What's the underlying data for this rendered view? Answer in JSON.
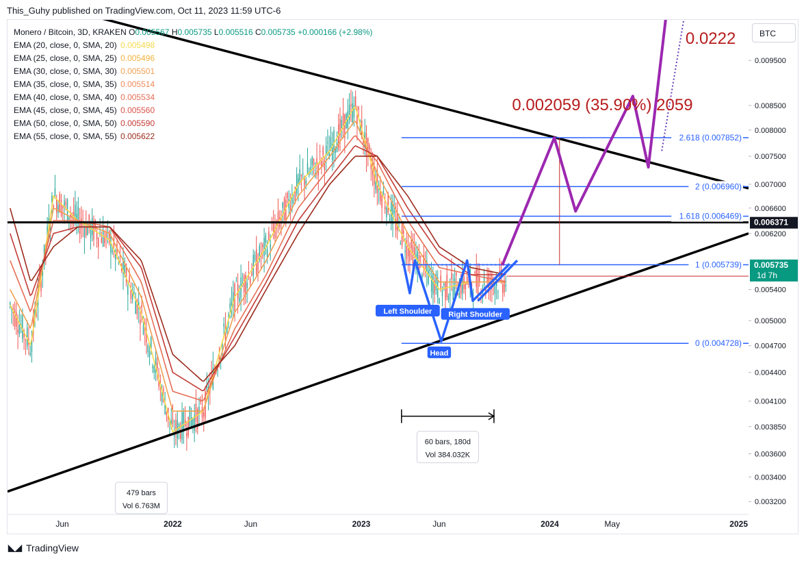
{
  "publisher_line": "This_Guhy published on TradingView.com, Oct 11, 2023 11:59 UTC-6",
  "legend": {
    "symbol": "Monero / Bitcoin, 3D, KRAKEN",
    "ohlc": [
      {
        "k": "O",
        "v": "0.005567"
      },
      {
        "k": "H",
        "v": "0.005735"
      },
      {
        "k": "L",
        "v": "0.005516"
      },
      {
        "k": "C",
        "v": "0.005735"
      },
      {
        "k": "",
        "v": "+0.000166 (+2.98%)"
      }
    ],
    "emas": [
      {
        "label": "EMA (20, close, 0, SMA, 20)",
        "value": "0.005498",
        "color": "#f5d94a"
      },
      {
        "label": "EMA (25, close, 0, SMA, 25)",
        "value": "0.005496",
        "color": "#f2b23c"
      },
      {
        "label": "EMA (30, close, 0, SMA, 30)",
        "value": "0.005501",
        "color": "#f0a050"
      },
      {
        "label": "EMA (35, close, 0, SMA, 35)",
        "value": "0.005514",
        "color": "#ec8a5a"
      },
      {
        "label": "EMA (40, close, 0, SMA, 40)",
        "value": "0.005534",
        "color": "#e66e55"
      },
      {
        "label": "EMA (45, close, 0, SMA, 45)",
        "value": "0.005560",
        "color": "#d9534a"
      },
      {
        "label": "EMA (50, close, 0, SMA, 50)",
        "value": "0.005590",
        "color": "#c23a35"
      },
      {
        "label": "EMA (55, close, 0, SMA, 55)",
        "value": "0.005622",
        "color": "#9c2a1c"
      }
    ]
  },
  "currency_button": "BTC",
  "footer_brand": "TradingView",
  "chart_data": {
    "type": "line",
    "y_axis_ticks": [
      "0.009500",
      "0.008500",
      "0.008000",
      "0.007500",
      "0.007000",
      "0.006600",
      "0.006200",
      "0.005400",
      "0.005000",
      "0.004700",
      "0.004400",
      "0.004100",
      "0.003850",
      "0.003600",
      "0.003400",
      "0.003200"
    ],
    "y_tick_values": [
      0.0095,
      0.0085,
      0.008,
      0.0075,
      0.007,
      0.0066,
      0.0062,
      0.0054,
      0.005,
      0.0047,
      0.0044,
      0.0041,
      0.00385,
      0.0036,
      0.0034,
      0.0032
    ],
    "ylim": [
      0.0031,
      0.0105
    ],
    "y_scale": "log",
    "x_axis_ticks": [
      "Jun",
      "2022",
      "Jun",
      "2023",
      "Jun",
      "2024",
      "May",
      "2025"
    ],
    "x_tick_dates": [
      "2021-06-01",
      "2022-01-01",
      "2022-06-01",
      "2023-01-01",
      "2023-06-01",
      "2024-01-01",
      "2024-05-01",
      "2025-01-01"
    ],
    "xlim": [
      "2021-02-15",
      "2025-01-20"
    ],
    "price_labels": [
      {
        "text": "0.006371",
        "value": 0.006371,
        "bg": "#131722"
      },
      {
        "text": "0.005735",
        "value": 0.005735,
        "bg": "#089981"
      }
    ],
    "countdown": "1d 7h",
    "fib_levels": [
      {
        "ratio": "2.618",
        "label": "2.618 (0.007852)",
        "value": 0.007852
      },
      {
        "ratio": "2",
        "label": "2 (0.006960)",
        "value": 0.00696
      },
      {
        "ratio": "1.618",
        "label": "1.618 (0.006469)",
        "value": 0.006469
      },
      {
        "ratio": "1",
        "label": "1 (0.005739)",
        "value": 0.005739
      },
      {
        "ratio": "0",
        "label": "0 (0.004728)",
        "value": 0.004728
      }
    ],
    "fib_date_range": [
      "2023-03-20",
      "2025-01-20"
    ],
    "horizontal_line": {
      "value": 0.006371
    },
    "triangle_upper": [
      {
        "x": "2021-02-15",
        "y": 0.0112
      },
      {
        "x": "2025-01-20",
        "y": 0.00693
      }
    ],
    "triangle_lower": [
      {
        "x": "2021-02-15",
        "y": 0.00328
      },
      {
        "x": "2025-01-20",
        "y": 0.0062
      }
    ],
    "projection_text": "0.002059 (35.90%) 2059",
    "target_text": "0.0222",
    "pattern_labels": [
      {
        "text": "Left Shoulder",
        "date": "2023-04-01",
        "value": 0.00512
      },
      {
        "text": "Head",
        "date": "2023-06-01",
        "value": 0.00462
      },
      {
        "text": "Right Shoulder",
        "date": "2023-08-10",
        "value": 0.00508
      }
    ],
    "hs_path": [
      {
        "x": "2023-03-20",
        "y": 0.0059
      },
      {
        "x": "2023-04-05",
        "y": 0.00535
      },
      {
        "x": "2023-04-15",
        "y": 0.0058
      },
      {
        "x": "2023-06-05",
        "y": 0.00475
      },
      {
        "x": "2023-07-25",
        "y": 0.0058
      },
      {
        "x": "2023-08-05",
        "y": 0.00525
      },
      {
        "x": "2023-10-15",
        "y": 0.00575
      }
    ],
    "projection_path": [
      {
        "x": "2023-10-01",
        "y": 0.00573
      },
      {
        "x": "2024-01-10",
        "y": 0.00785
      },
      {
        "x": "2024-02-20",
        "y": 0.00655
      },
      {
        "x": "2024-06-10",
        "y": 0.0087
      },
      {
        "x": "2024-07-10",
        "y": 0.0073
      },
      {
        "x": "2024-08-20",
        "y": 0.0114
      }
    ],
    "projection_dotted": [
      {
        "x": "2024-08-05",
        "y": 0.0076
      },
      {
        "x": "2024-09-25",
        "y": 0.0112
      }
    ],
    "date_range_measure": {
      "start": "2023-03-20",
      "end": "2023-09-15",
      "value": 0.00395,
      "bars": "60 bars, 180d",
      "vol": "Vol 384.032K"
    },
    "left_measure": {
      "bars": "479 bars",
      "vol": "Vol 6.763M",
      "date": "2021-11-01",
      "value": 0.0033
    },
    "ema_series": {
      "x": [
        "2021-02-20",
        "2021-04-01",
        "2021-05-15",
        "2021-07-01",
        "2021-09-01",
        "2021-11-01",
        "2022-01-01",
        "2022-03-01",
        "2022-05-01",
        "2022-07-01",
        "2022-09-01",
        "2022-11-01",
        "2022-12-20",
        "2023-02-01",
        "2023-04-01",
        "2023-06-01",
        "2023-08-01",
        "2023-10-10"
      ],
      "series": [
        {
          "color": "#f5d94a",
          "values": [
            0.0052,
            0.0047,
            0.0068,
            0.0064,
            0.0061,
            0.0051,
            0.0038,
            0.004,
            0.0053,
            0.006,
            0.007,
            0.0076,
            0.0085,
            0.007,
            0.006,
            0.0054,
            0.0055,
            0.0055
          ]
        },
        {
          "color": "#f0a050",
          "values": [
            0.0054,
            0.0049,
            0.0066,
            0.0064,
            0.0062,
            0.0053,
            0.004,
            0.004,
            0.0051,
            0.0058,
            0.0068,
            0.0075,
            0.0082,
            0.0072,
            0.0062,
            0.0055,
            0.0055,
            0.0055
          ]
        },
        {
          "color": "#e66e55",
          "values": [
            0.0058,
            0.0051,
            0.0064,
            0.0064,
            0.0063,
            0.0055,
            0.0042,
            0.0041,
            0.0049,
            0.0056,
            0.0066,
            0.0073,
            0.0079,
            0.0074,
            0.0064,
            0.0057,
            0.0056,
            0.0055
          ]
        },
        {
          "color": "#c23a35",
          "values": [
            0.0062,
            0.0053,
            0.0062,
            0.0063,
            0.0063,
            0.0057,
            0.0044,
            0.0042,
            0.0048,
            0.0055,
            0.0064,
            0.0071,
            0.0077,
            0.0075,
            0.0066,
            0.0059,
            0.0056,
            0.0056
          ]
        },
        {
          "color": "#9c2a1c",
          "values": [
            0.0066,
            0.0055,
            0.006,
            0.0063,
            0.0063,
            0.0058,
            0.0046,
            0.0043,
            0.0047,
            0.0054,
            0.0062,
            0.007,
            0.0075,
            0.0075,
            0.0068,
            0.006,
            0.0057,
            0.0056
          ]
        }
      ]
    }
  }
}
